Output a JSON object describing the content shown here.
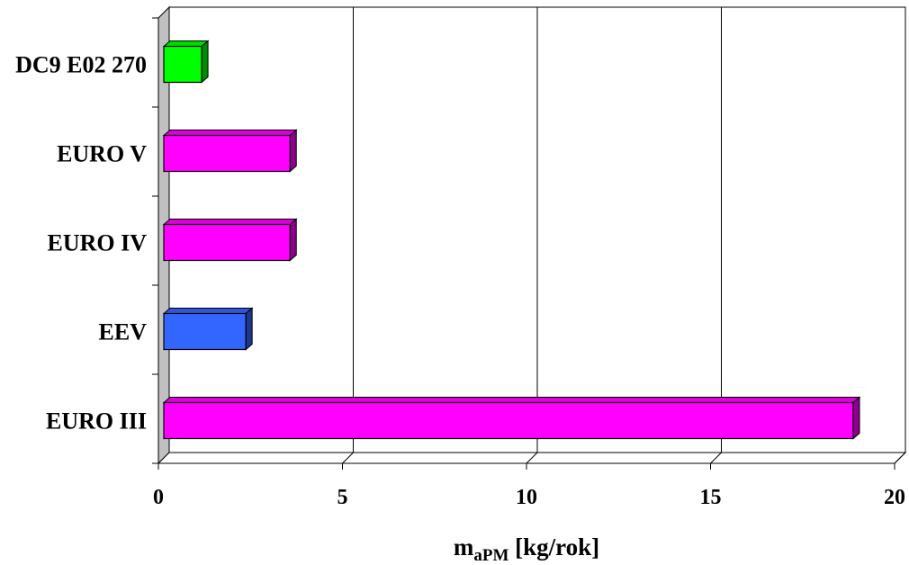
{
  "chart_data": {
    "type": "bar",
    "orientation": "horizontal",
    "style": "3d",
    "categories": [
      "DC9 E02 270",
      "EURO V",
      "EURO IV",
      "EEV",
      "EURO III"
    ],
    "values": [
      1.2,
      3.6,
      3.6,
      2.4,
      18.9
    ],
    "colors": [
      "#00ff00",
      "#ff00ff",
      "#ff00ff",
      "#3366ff",
      "#ff00ff"
    ],
    "xlabel": {
      "main": "m",
      "sub": "aPM",
      "unit": " [kg/rok]"
    },
    "xlim": [
      0,
      20
    ],
    "xticks": [
      0,
      5,
      10,
      15,
      20
    ],
    "grid": "vertical",
    "legend": "none"
  }
}
